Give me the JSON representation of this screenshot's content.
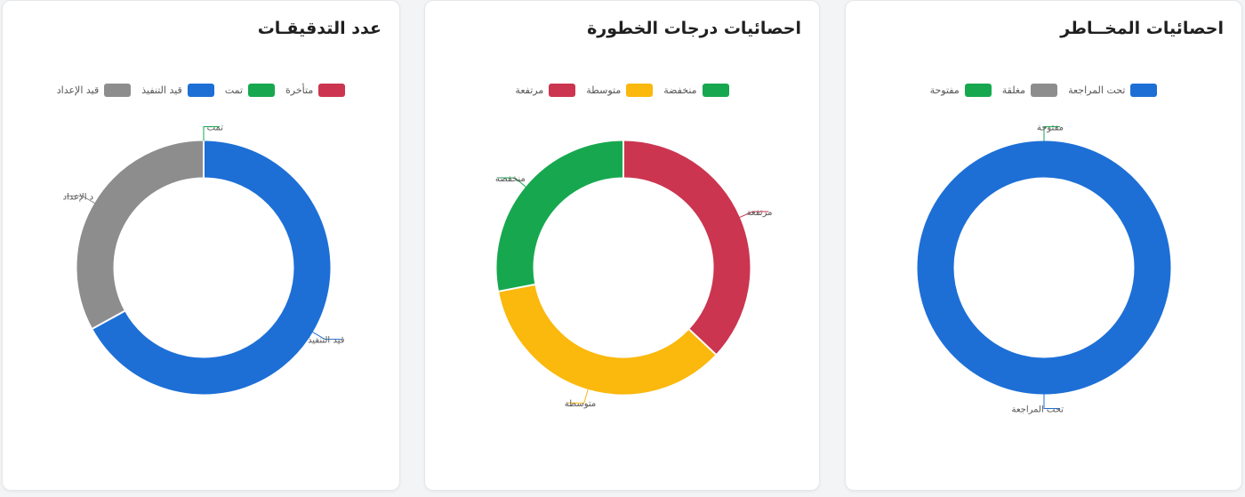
{
  "cards": [
    {
      "title": "عدد التدقيقـات",
      "chart_data": {
        "type": "doughnut",
        "title": "عدد التدقيقـات",
        "categories": [
          "متأخرة",
          "تمت",
          "قيد التنفيذ",
          "قيد الإعداد"
        ],
        "values": [
          0,
          0,
          67,
          33
        ],
        "colors": [
          "#cb3550",
          "#17a84f",
          "#1d6fd6",
          "#8d8d8d"
        ],
        "legend": "top",
        "grid": false,
        "start_angle_deg": 0,
        "outer_labels": [
          {
            "category": "تمت",
            "text": "تمت"
          },
          {
            "category": "قيد الإعداد",
            "text": "د الإعداد"
          },
          {
            "category": "قيد التنفيذ",
            "text": "قيد التنفيذ"
          }
        ]
      }
    },
    {
      "title": "احصائيات درجات الخطورة",
      "chart_data": {
        "type": "doughnut",
        "title": "احصائيات درجات الخطورة",
        "categories": [
          "مرتفعة",
          "متوسطة",
          "منخفضة"
        ],
        "values": [
          37,
          35,
          28
        ],
        "colors": [
          "#cb3550",
          "#fbb80d",
          "#17a84f"
        ],
        "legend": "top",
        "grid": false,
        "start_angle_deg": 0,
        "outer_labels": [
          {
            "category": "مرتفعة",
            "text": "مرتفعة"
          },
          {
            "category": "متوسطة",
            "text": "متوسطة"
          },
          {
            "category": "منخفضة",
            "text": "منخفضة"
          }
        ]
      }
    },
    {
      "title": "احصائيات المخــاطر",
      "chart_data": {
        "type": "doughnut",
        "title": "احصائيات المخــاطر",
        "categories": [
          "تحت المراجعة",
          "مغلقة",
          "مفتوحة"
        ],
        "values": [
          100,
          0,
          0
        ],
        "colors": [
          "#1d6fd6",
          "#8d8d8d",
          "#17a84f"
        ],
        "legend": "top",
        "grid": false,
        "start_angle_deg": 0,
        "outer_labels": [
          {
            "category": "مفتوحة",
            "text": "مفتوحة"
          },
          {
            "category": "تحت المراجعة",
            "text": "تحت المراجعة"
          }
        ]
      }
    }
  ]
}
